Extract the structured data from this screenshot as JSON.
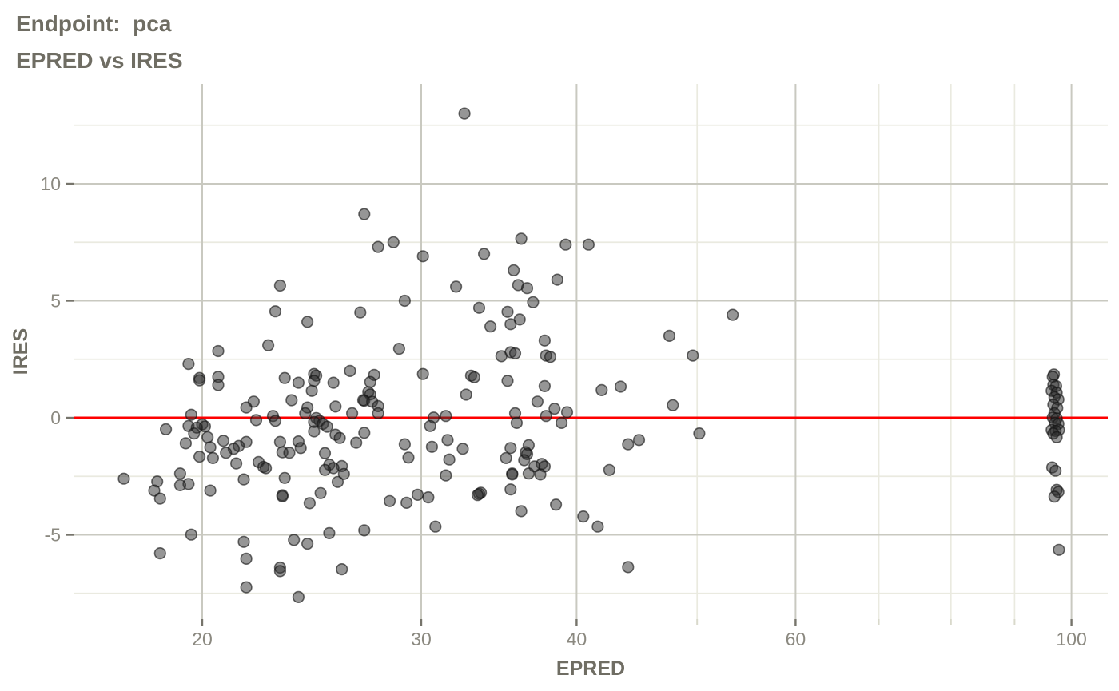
{
  "title": {
    "line1": "Endpoint:  pca",
    "line2": "EPRED vs IRES"
  },
  "colors": {
    "title_text": "#6f6d63",
    "tick_text": "#8b8980",
    "major_grid": "#c9c9c0",
    "minor_grid": "#eaeae0",
    "major_tick": "#76746b",
    "minor_tick": "#d9d9cb",
    "ref_line": "#fe0000",
    "point_fill": "#2e2e2e",
    "point_stroke": "#141414"
  },
  "chart_data": {
    "type": "scatter",
    "title": "Endpoint:  pca",
    "subtitle": "EPRED vs IRES",
    "xlabel": "EPRED",
    "ylabel": "IRES",
    "x_scale": "log10",
    "xlim": [
      15.9,
      107
    ],
    "ylim": [
      -8.6,
      14.3
    ],
    "x_major_ticks": [
      20,
      30,
      40,
      60,
      100
    ],
    "x_minor_ticks": [
      50,
      70,
      80,
      90
    ],
    "y_major_ticks": [
      10,
      5,
      0,
      -5
    ],
    "y_minor_ticks": [
      12.5,
      7.5,
      2.5,
      -2.5,
      -7.5
    ],
    "grid": true,
    "legend": "none",
    "refline": {
      "y": 0
    },
    "points": [
      [
        32.5,
        13.0
      ],
      [
        27.0,
        8.7
      ],
      [
        28.5,
        7.5
      ],
      [
        27.7,
        7.3
      ],
      [
        36.1,
        7.65
      ],
      [
        39.2,
        7.4
      ],
      [
        40.9,
        7.4
      ],
      [
        33.7,
        7.0
      ],
      [
        30.1,
        6.9
      ],
      [
        35.6,
        6.3
      ],
      [
        38.6,
        5.9
      ],
      [
        23.1,
        5.65
      ],
      [
        35.9,
        5.67
      ],
      [
        32.0,
        5.6
      ],
      [
        36.5,
        5.54
      ],
      [
        29.1,
        5.0
      ],
      [
        36.9,
        4.94
      ],
      [
        33.4,
        4.7
      ],
      [
        22.9,
        4.55
      ],
      [
        26.8,
        4.5
      ],
      [
        35.2,
        4.53
      ],
      [
        53.4,
        4.4
      ],
      [
        36.0,
        4.2
      ],
      [
        24.3,
        4.1
      ],
      [
        35.4,
        4.0
      ],
      [
        34.1,
        3.9
      ],
      [
        47.5,
        3.5
      ],
      [
        37.7,
        3.3
      ],
      [
        22.6,
        3.1
      ],
      [
        28.8,
        2.95
      ],
      [
        20.6,
        2.85
      ],
      [
        35.4,
        2.8
      ],
      [
        35.7,
        2.75
      ],
      [
        34.8,
        2.63
      ],
      [
        37.8,
        2.66
      ],
      [
        38.1,
        2.6
      ],
      [
        49.6,
        2.66
      ],
      [
        19.5,
        2.3
      ],
      [
        26.3,
        2.0
      ],
      [
        24.6,
        1.87
      ],
      [
        30.1,
        1.87
      ],
      [
        27.5,
        1.83
      ],
      [
        24.7,
        1.8
      ],
      [
        32.9,
        1.8
      ],
      [
        20.6,
        1.75
      ],
      [
        33.1,
        1.73
      ],
      [
        19.9,
        1.7
      ],
      [
        23.3,
        1.7
      ],
      [
        19.9,
        1.6
      ],
      [
        24.6,
        1.58
      ],
      [
        35.2,
        1.58
      ],
      [
        27.3,
        1.53
      ],
      [
        23.9,
        1.5
      ],
      [
        25.5,
        1.5
      ],
      [
        20.6,
        1.4
      ],
      [
        43.4,
        1.33
      ],
      [
        37.7,
        1.35
      ],
      [
        41.9,
        1.18
      ],
      [
        24.5,
        1.15
      ],
      [
        27.2,
        1.1
      ],
      [
        27.3,
        1.0
      ],
      [
        32.6,
        0.99
      ],
      [
        96.8,
        1.85
      ],
      [
        96.6,
        1.75
      ],
      [
        96.7,
        1.41
      ],
      [
        97.2,
        1.35
      ],
      [
        96.4,
        1.15
      ],
      [
        97.3,
        1.07
      ],
      [
        96.9,
        0.88
      ],
      [
        97.6,
        0.78
      ],
      [
        23.6,
        0.75
      ],
      [
        27.0,
        0.73
      ],
      [
        26.95,
        0.75
      ],
      [
        22.0,
        0.69
      ],
      [
        27.4,
        0.69
      ],
      [
        37.2,
        0.69
      ],
      [
        96.7,
        0.56
      ],
      [
        47.8,
        0.54
      ],
      [
        27.7,
        0.5
      ],
      [
        25.6,
        0.48
      ],
      [
        21.7,
        0.44
      ],
      [
        24.3,
        0.44
      ],
      [
        97.4,
        0.42
      ],
      [
        38.4,
        0.39
      ],
      [
        39.3,
        0.24
      ],
      [
        24.2,
        0.19
      ],
      [
        26.4,
        0.19
      ],
      [
        27.7,
        0.19
      ],
      [
        35.7,
        0.19
      ],
      [
        96.9,
        0.19
      ],
      [
        19.6,
        0.13
      ],
      [
        22.8,
        0.08
      ],
      [
        31.4,
        0.08
      ],
      [
        37.8,
        0.08
      ],
      [
        30.7,
        0.01
      ],
      [
        96.6,
        0.01
      ],
      [
        24.7,
        -0.01
      ],
      [
        97.3,
        -0.03
      ],
      [
        22.1,
        -0.1
      ],
      [
        22.9,
        -0.13
      ],
      [
        24.85,
        -0.13
      ],
      [
        24.6,
        -0.18
      ],
      [
        35.8,
        -0.22
      ],
      [
        38.9,
        -0.22
      ],
      [
        97.0,
        -0.22
      ],
      [
        97.6,
        -0.26
      ],
      [
        25.0,
        -0.26
      ],
      [
        20.0,
        -0.28
      ],
      [
        30.5,
        -0.35
      ],
      [
        19.5,
        -0.35
      ],
      [
        25.2,
        -0.38
      ],
      [
        20.1,
        -0.37
      ],
      [
        19.8,
        -0.42
      ],
      [
        18.7,
        -0.49
      ],
      [
        96.4,
        -0.52
      ],
      [
        97.7,
        -0.52
      ],
      [
        97.1,
        -0.56
      ],
      [
        24.6,
        -0.58
      ],
      [
        27.0,
        -0.64
      ],
      [
        19.7,
        -0.67
      ],
      [
        96.7,
        -0.67
      ],
      [
        50.2,
        -0.67
      ],
      [
        20.2,
        -0.83
      ],
      [
        97.3,
        -0.83
      ],
      [
        25.6,
        -0.72
      ],
      [
        25.8,
        -0.86
      ],
      [
        44.9,
        -0.95
      ],
      [
        31.5,
        -0.95
      ],
      [
        20.8,
        -0.98
      ],
      [
        23.9,
        -1.01
      ],
      [
        21.7,
        -1.03
      ],
      [
        23.1,
        -1.03
      ],
      [
        26.6,
        -1.06
      ],
      [
        19.4,
        -1.09
      ],
      [
        29.1,
        -1.13
      ],
      [
        44.0,
        -1.13
      ],
      [
        36.6,
        -1.17
      ],
      [
        21.4,
        -1.2
      ],
      [
        30.6,
        -1.24
      ],
      [
        20.3,
        -1.26
      ],
      [
        24.0,
        -1.29
      ],
      [
        35.4,
        -1.29
      ],
      [
        21.2,
        -1.32
      ],
      [
        32.4,
        -1.32
      ],
      [
        36.4,
        -1.47
      ],
      [
        23.2,
        -1.47
      ],
      [
        23.5,
        -1.49
      ],
      [
        20.9,
        -1.49
      ],
      [
        25.1,
        -1.51
      ],
      [
        36.5,
        -1.55
      ],
      [
        19.9,
        -1.66
      ],
      [
        29.3,
        -1.7
      ],
      [
        20.4,
        -1.72
      ],
      [
        35.1,
        -1.72
      ],
      [
        31.6,
        -1.78
      ],
      [
        36.3,
        -1.81
      ],
      [
        22.2,
        -1.89
      ],
      [
        21.3,
        -1.95
      ],
      [
        37.5,
        -1.97
      ],
      [
        25.3,
        -2.0
      ],
      [
        25.9,
        -2.06
      ],
      [
        37.0,
        -2.08
      ],
      [
        37.7,
        -2.08
      ],
      [
        22.4,
        -2.1
      ],
      [
        96.5,
        -2.12
      ],
      [
        22.5,
        -2.15
      ],
      [
        25.5,
        -2.15
      ],
      [
        42.5,
        -2.23
      ],
      [
        25.1,
        -2.23
      ],
      [
        97.1,
        -2.26
      ],
      [
        19.2,
        -2.38
      ],
      [
        35.5,
        -2.38
      ],
      [
        36.6,
        -2.38
      ],
      [
        26.0,
        -2.4
      ],
      [
        35.5,
        -2.42
      ],
      [
        37.4,
        -2.42
      ],
      [
        31.4,
        -2.46
      ],
      [
        23.3,
        -2.57
      ],
      [
        17.3,
        -2.6
      ],
      [
        21.6,
        -2.63
      ],
      [
        18.4,
        -2.72
      ],
      [
        25.7,
        -2.74
      ],
      [
        19.5,
        -2.83
      ],
      [
        19.2,
        -2.88
      ],
      [
        35.4,
        -3.06
      ],
      [
        97.3,
        -3.08
      ],
      [
        18.3,
        -3.11
      ],
      [
        20.3,
        -3.11
      ],
      [
        97.6,
        -3.17
      ],
      [
        33.5,
        -3.2
      ],
      [
        24.9,
        -3.22
      ],
      [
        33.4,
        -3.25
      ],
      [
        33.3,
        -3.3
      ],
      [
        29.8,
        -3.29
      ],
      [
        23.2,
        -3.31
      ],
      [
        23.2,
        -3.36
      ],
      [
        96.9,
        -3.37
      ],
      [
        30.4,
        -3.4
      ],
      [
        18.5,
        -3.45
      ],
      [
        28.3,
        -3.56
      ],
      [
        29.2,
        -3.63
      ],
      [
        24.4,
        -3.65
      ],
      [
        38.5,
        -3.71
      ],
      [
        36.1,
        -3.99
      ],
      [
        40.5,
        -4.22
      ],
      [
        41.6,
        -4.65
      ],
      [
        30.8,
        -4.65
      ],
      [
        27.0,
        -4.81
      ],
      [
        25.3,
        -4.93
      ],
      [
        19.6,
        -4.99
      ],
      [
        23.7,
        -5.22
      ],
      [
        21.6,
        -5.3
      ],
      [
        24.3,
        -5.38
      ],
      [
        97.7,
        -5.64
      ],
      [
        18.5,
        -5.79
      ],
      [
        21.7,
        -6.02
      ],
      [
        44.0,
        -6.38
      ],
      [
        23.1,
        -6.4
      ],
      [
        25.9,
        -6.47
      ],
      [
        23.1,
        -6.55
      ],
      [
        21.7,
        -7.24
      ],
      [
        23.9,
        -7.66
      ]
    ]
  }
}
